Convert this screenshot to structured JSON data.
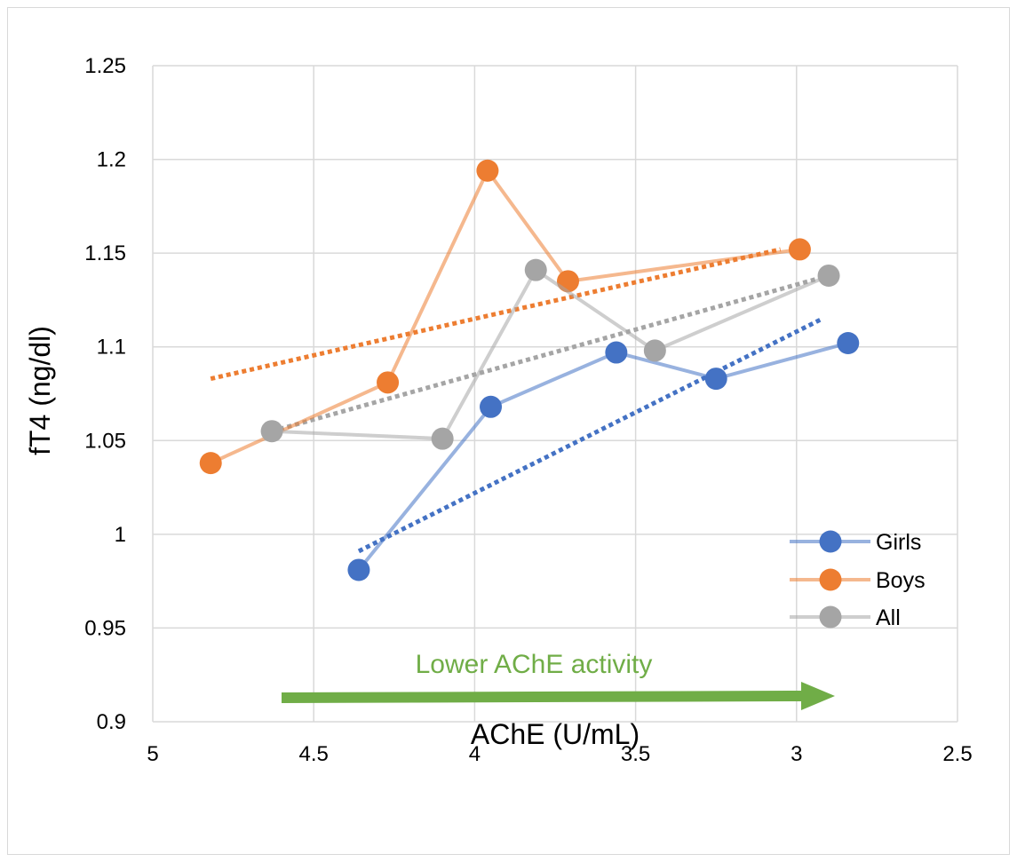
{
  "chart_data": {
    "type": "scatter",
    "title": "",
    "xlabel": "AChE (U/mL)",
    "ylabel": "fT4 (ng/dl)",
    "x_reversed": true,
    "xlim": [
      5,
      2.5
    ],
    "ylim": [
      0.9,
      1.25
    ],
    "x_ticks": [
      "5",
      "4.5",
      "4",
      "3.5",
      "3",
      "2.5"
    ],
    "x_tick_values": [
      5,
      4.5,
      4,
      3.5,
      3,
      2.5
    ],
    "y_ticks": [
      "0.9",
      "0.95",
      "1",
      "1.05",
      "1.1",
      "1.15",
      "1.2",
      "1.25"
    ],
    "y_tick_values": [
      0.9,
      0.95,
      1.0,
      1.05,
      1.1,
      1.15,
      1.2,
      1.25
    ],
    "grid": true,
    "legend_position": "bottom-right",
    "series": [
      {
        "name": "Girls",
        "color": "#4472c4",
        "x": [
          4.36,
          3.95,
          3.56,
          3.25,
          2.84
        ],
        "y": [
          0.981,
          1.068,
          1.097,
          1.083,
          1.102
        ],
        "trendline": [
          [
            4.36,
            0.991
          ],
          [
            2.92,
            1.115
          ]
        ]
      },
      {
        "name": "Boys",
        "color": "#ed7d31",
        "x": [
          4.82,
          4.27,
          3.96,
          3.71,
          2.99
        ],
        "y": [
          1.038,
          1.081,
          1.194,
          1.135,
          1.152
        ],
        "trendline": [
          [
            4.82,
            1.083
          ],
          [
            3.05,
            1.152
          ]
        ]
      },
      {
        "name": "All",
        "color": "#a5a5a5",
        "x": [
          4.63,
          4.1,
          3.81,
          3.44,
          2.9
        ],
        "y": [
          1.055,
          1.051,
          1.141,
          1.098,
          1.138
        ],
        "trendline": [
          [
            4.63,
            1.055
          ],
          [
            2.9,
            1.138
          ]
        ]
      }
    ],
    "annotation": {
      "text": "Lower AChE activity",
      "color": "#70ad47",
      "arrow_direction": "right"
    }
  }
}
